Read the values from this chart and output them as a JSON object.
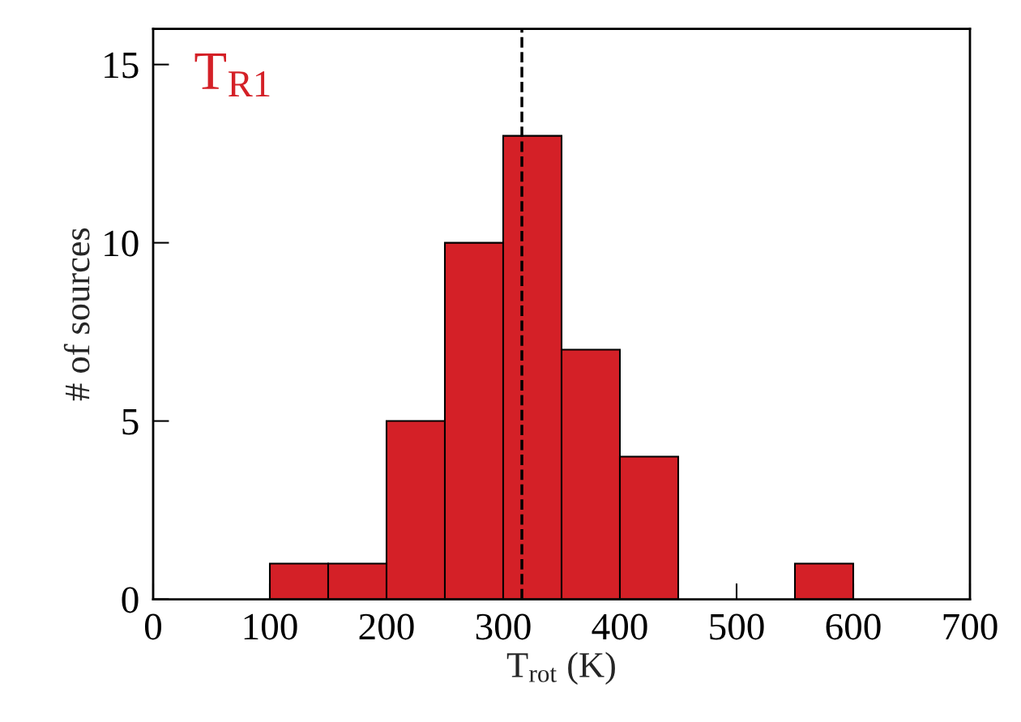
{
  "chart_data": {
    "type": "histogram",
    "xlabel": "T$_{rot}$ (K)",
    "ylabel": "# of sources",
    "annotations": [
      "T$_{R1}$"
    ],
    "bins": [
      100,
      150,
      200,
      250,
      300,
      350,
      400,
      450,
      500,
      550,
      600
    ],
    "values": [
      1,
      1,
      5,
      10,
      13,
      7,
      4,
      0,
      0,
      1
    ],
    "color": "#d42027",
    "xlim": [
      0,
      700
    ],
    "xticks": [
      0,
      100,
      200,
      300,
      400,
      500,
      600,
      700
    ],
    "ylim": [
      0,
      16
    ],
    "yticks": [
      0,
      5,
      10,
      15
    ],
    "ref_lines": [
      {
        "axis": "x",
        "value": 316,
        "color": "#000000",
        "line_style": "dashed"
      }
    ],
    "grid": false,
    "legend": false
  }
}
